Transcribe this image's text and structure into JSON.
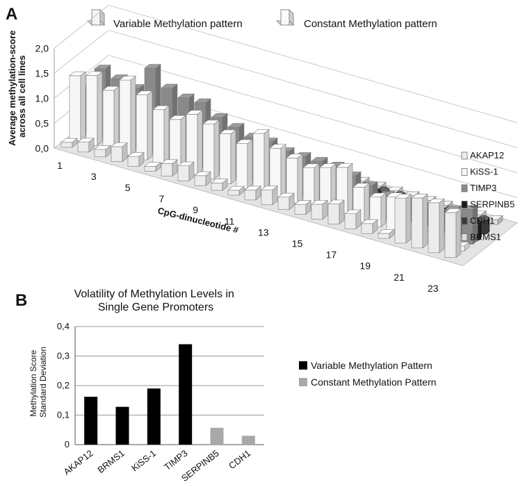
{
  "panel_a": {
    "letter": "A",
    "top_legend": {
      "variable_label": "Variable Methylation pattern",
      "constant_label": "Constant Methylation pattern"
    }
  },
  "panel_b": {
    "letter": "B"
  },
  "chart_data": [
    {
      "type": "bar",
      "style": "3d-stacked-rows",
      "title": "",
      "ylabel": "Average methylation-score across all cell lines",
      "xlabel": "CpG-dinucleotide #",
      "ylim": [
        0,
        2
      ],
      "y_ticks": [
        "0,0",
        "0,5",
        "1,0",
        "1,5",
        "2,0"
      ],
      "x_tick_labels": [
        "1",
        "3",
        "5",
        "7",
        "9",
        "11",
        "13",
        "15",
        "17",
        "19",
        "21",
        "23"
      ],
      "legend_position": "right",
      "series": [
        {
          "name": "AKAP12",
          "color": "#ececec",
          "values": [
            0.1,
            0.2,
            0.15,
            0.3,
            0.2,
            0.1,
            0.25,
            0.3,
            0.2,
            0.15,
            0.1,
            0.2,
            0.3,
            0.25,
            0.2,
            0.3,
            0.4,
            0.3,
            0.2,
            0.1,
            0.9,
            1.0,
            1.0,
            0.9
          ]
        },
        {
          "name": "KiSS-1",
          "color": "#f7f7f7",
          "values": [
            1.3,
            1.4,
            1.2,
            1.5,
            1.3,
            1.1,
            1.0,
            1.2,
            1.1,
            1.0,
            0.9,
            1.2,
            1.0,
            0.9,
            0.8,
            0.9,
            1.0,
            0.7,
            0.6,
            0.7,
            0.2,
            0.1,
            0.1,
            0.1
          ]
        },
        {
          "name": "TIMP3",
          "color": "#8a8a8a",
          "values": [
            0.9,
            1.4,
            1.3,
            1.2,
            1.7,
            1.4,
            1.3,
            1.3,
            1.1,
            1.0,
            0.9,
            0.9,
            0.8,
            0.8,
            0.8,
            0.8,
            0.7,
            0.6,
            0.5,
            0.4,
            0.3,
            0.2,
            0.6,
            0.7
          ]
        },
        {
          "name": "SERPINB5",
          "color": "#1c1c1c",
          "values": [
            0.35,
            0.4,
            0.4,
            0.35,
            0.35,
            0.35,
            0.4,
            0.35,
            0.35,
            0.35,
            0.35,
            0.35,
            0.35,
            0.3,
            0.3,
            0.35,
            0.35,
            0.35,
            0.35,
            0.35,
            0.35,
            0.35,
            0.3,
            0.3
          ]
        },
        {
          "name": "CDH1",
          "color": "#3a3a3a",
          "values": [
            0.3,
            0.3,
            0.35,
            0.3,
            0.3,
            0.3,
            0.3,
            0.3,
            0.3,
            0.25,
            0.3,
            0.3,
            0.25,
            0.3,
            0.25,
            0.25,
            0.25,
            0.25,
            0.25,
            0.25,
            0.25,
            0.25,
            0.25,
            0.25
          ]
        },
        {
          "name": "BRMS1",
          "color": "#dcdcdc",
          "values": [
            0.1,
            0.15,
            0.5,
            0.1,
            0.1,
            0.1,
            0.15,
            0.1,
            0.1,
            0.1,
            0.1,
            0.1,
            0.1,
            0.15,
            0.1,
            0.1,
            0.1,
            0.1,
            0.1,
            0.1,
            0.1,
            0.1,
            0.1,
            0.1
          ]
        }
      ]
    },
    {
      "type": "bar",
      "title": "Volatility of Methylation Levels in Single Gene Promoters",
      "title_lines": [
        "Volatility of Methylation Levels in",
        "Single Gene Promoters"
      ],
      "ylabel": "Methylation Score Standard Deviation",
      "ylabel_lines": [
        "Methylation Score",
        "Standard Deviation"
      ],
      "xlabel": "",
      "ylim": [
        0,
        0.4
      ],
      "y_ticks": [
        "0",
        "0,1",
        "0,2",
        "0,3",
        "0,4"
      ],
      "categories": [
        "AKAP12",
        "BRMS1",
        "KiSS-1",
        "TIMP3",
        "SERPINB5",
        "CDH1"
      ],
      "values": [
        0.162,
        0.128,
        0.19,
        0.34,
        0.057,
        0.03
      ],
      "groups": [
        "Variable Methylation Pattern",
        "Variable Methylation Pattern",
        "Variable Methylation Pattern",
        "Variable Methylation Pattern",
        "Constant Methylation Pattern",
        "Constant Methylation Pattern"
      ],
      "legend": [
        {
          "name": "Variable Methylation Pattern",
          "color": "#000000"
        },
        {
          "name": "Constant Methylation Pattern",
          "color": "#a8a8a8"
        }
      ],
      "legend_position": "right",
      "grid": true
    }
  ]
}
